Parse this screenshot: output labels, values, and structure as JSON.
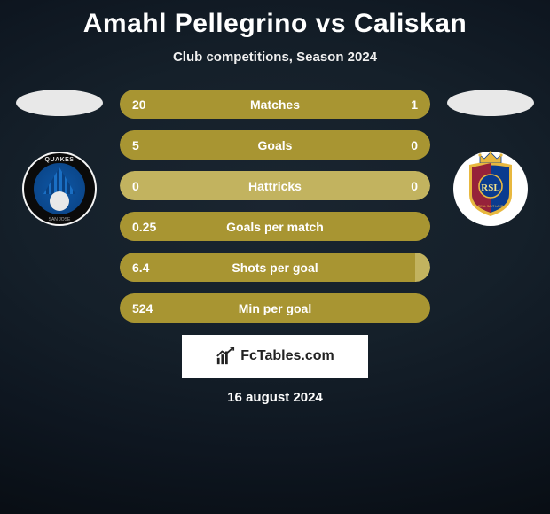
{
  "title": "Amahl Pellegrino vs Caliskan",
  "subtitle": "Club competitions, Season 2024",
  "date": "16 august 2024",
  "attribution": {
    "label": "FcTables.com"
  },
  "colors": {
    "bar_highlight": "#a89532",
    "bar_track": "#c2b35f",
    "background_center": "#1a2530",
    "background_edge": "#080d13",
    "text": "#ffffff"
  },
  "player_left": {
    "name": "Amahl Pellegrino",
    "club": "San Jose Earthquakes",
    "club_short": "QUAKES",
    "badge_colors": {
      "ring": "#0a0a0a",
      "inner": "#0d57a6",
      "accent": "#e8e8e8"
    }
  },
  "player_right": {
    "name": "Caliskan",
    "club": "Real Salt Lake",
    "club_short": "RSL",
    "badge_colors": {
      "claret": "#96223a",
      "cobalt": "#0a3b8f",
      "gold": "#e8b83f",
      "monogram": "#f2e08a"
    }
  },
  "stats": [
    {
      "label": "Matches",
      "left_value": "20",
      "right_value": "1",
      "left_pct": 83,
      "right_pct": 17,
      "track_color": "#c2b35f",
      "left_color": "#a89532",
      "right_color": "#a89532"
    },
    {
      "label": "Goals",
      "left_value": "5",
      "right_value": "0",
      "left_pct": 100,
      "right_pct": 0,
      "track_color": "#a89532",
      "left_color": "#a89532",
      "right_color": "#a89532"
    },
    {
      "label": "Hattricks",
      "left_value": "0",
      "right_value": "0",
      "left_pct": 0,
      "right_pct": 0,
      "track_color": "#c2b35f",
      "left_color": "#a89532",
      "right_color": "#a89532"
    },
    {
      "label": "Goals per match",
      "left_value": "0.25",
      "right_value": "",
      "left_pct": 100,
      "right_pct": 0,
      "track_color": "#a89532",
      "left_color": "#a89532",
      "right_color": "#a89532"
    },
    {
      "label": "Shots per goal",
      "left_value": "6.4",
      "right_value": "",
      "left_pct": 95,
      "right_pct": 0,
      "track_color": "#c2b35f",
      "left_color": "#a89532",
      "right_color": "#a89532"
    },
    {
      "label": "Min per goal",
      "left_value": "524",
      "right_value": "",
      "left_pct": 100,
      "right_pct": 0,
      "track_color": "#a89532",
      "left_color": "#a89532",
      "right_color": "#a89532"
    }
  ]
}
